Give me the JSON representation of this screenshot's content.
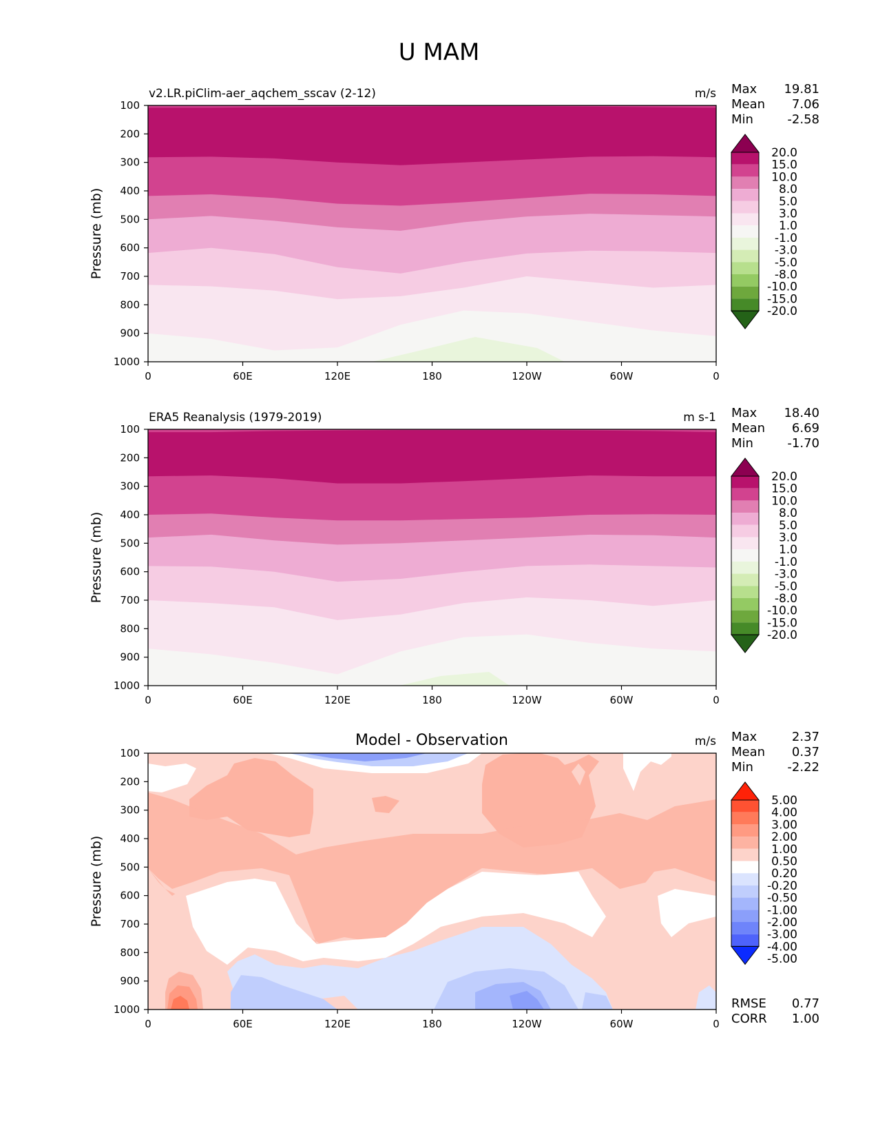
{
  "title": "U MAM",
  "x_ticks": [
    "0",
    "60E",
    "120E",
    "180",
    "120W",
    "60W",
    "0"
  ],
  "y_ticks": [
    "100",
    "200",
    "300",
    "400",
    "500",
    "600",
    "700",
    "800",
    "900",
    "1000"
  ],
  "ylabel": "Pressure (mb)",
  "colors": {
    "field_levels": [
      "#8c0051",
      "#b8126c",
      "#d2438f",
      "#e17fb2",
      "#eeacd3",
      "#f6cce3",
      "#f9e6f0",
      "#f6f6f4",
      "#e9f5dc",
      "#d4ecb5",
      "#b7df8d",
      "#94ca63",
      "#6ea83d",
      "#468a28",
      "#246218"
    ],
    "diff_levels": [
      "#ff2208",
      "#ff5232",
      "#ff7a5a",
      "#ff9a82",
      "#fdb3a2",
      "#fdd3ca",
      "#ffffff",
      "#dbe4fe",
      "#c0cefd",
      "#a4b6fc",
      "#8b9ffa",
      "#6e84fa",
      "#4e63fb",
      "#0b2bff"
    ]
  },
  "chart_data": [
    {
      "type": "contour",
      "title": "v2.LR.piClim-aer_aqchem_sscav (2-12)",
      "units": "m/s",
      "stats": {
        "Max": "19.81",
        "Mean": "7.06",
        "Min": "-2.58"
      },
      "colorbar_labels": [
        "20.0",
        "15.0",
        "10.0",
        "8.0",
        "5.0",
        "3.0",
        "1.0",
        "-1.0",
        "-3.0",
        "-5.0",
        "-8.0",
        "-10.0",
        "-15.0",
        "-20.0"
      ],
      "ylabel": "Pressure (mb)",
      "ylim": [
        1000,
        100
      ],
      "level_boundaries": [
        {
          "level": 100,
          "p": [
            108,
            108,
            106,
            105,
            104,
            103,
            103,
            104,
            106,
            108
          ]
        },
        {
          "level": 110,
          "p": [
            282,
            280,
            286,
            300,
            310,
            300,
            290,
            280,
            278,
            282
          ]
        },
        {
          "level": 101,
          "p": [
            418,
            412,
            425,
            445,
            452,
            440,
            425,
            410,
            412,
            418
          ]
        },
        {
          "level": 100,
          "p": [
            500,
            488,
            505,
            528,
            540,
            510,
            490,
            480,
            485,
            490
          ]
        },
        {
          "level": 101,
          "p": [
            618,
            600,
            622,
            668,
            690,
            650,
            620,
            610,
            612,
            618
          ]
        },
        {
          "level": 110,
          "p": [
            730,
            735,
            750,
            780,
            770,
            740,
            700,
            720,
            740,
            730
          ]
        },
        {
          "level": 100,
          "p": [
            900,
            920,
            960,
            950,
            870,
            820,
            830,
            860,
            890,
            910
          ]
        }
      ]
    },
    {
      "type": "contour",
      "title": "ERA5 Reanalysis (1979-2019)",
      "units": "m s-1",
      "stats": {
        "Max": "18.40",
        "Mean": "6.69",
        "Min": "-1.70"
      },
      "colorbar_labels": [
        "20.0",
        "15.0",
        "10.0",
        "8.0",
        "5.0",
        "3.0",
        "1.0",
        "-1.0",
        "-3.0",
        "-5.0",
        "-8.0",
        "-10.0",
        "-15.0",
        "-20.0"
      ],
      "ylabel": "Pressure (mb)",
      "ylim": [
        1000,
        100
      ],
      "level_boundaries": [
        {
          "level": 100,
          "p": [
            110,
            110,
            106,
            104,
            103,
            103,
            103,
            104,
            106,
            110
          ]
        },
        {
          "level": 110,
          "p": [
            265,
            262,
            272,
            290,
            290,
            282,
            272,
            262,
            265,
            265
          ]
        },
        {
          "level": 101,
          "p": [
            400,
            396,
            410,
            420,
            420,
            415,
            410,
            400,
            398,
            400
          ]
        },
        {
          "level": 100,
          "p": [
            480,
            470,
            490,
            505,
            500,
            490,
            480,
            470,
            472,
            480
          ]
        },
        {
          "level": 101,
          "p": [
            580,
            582,
            600,
            635,
            625,
            600,
            580,
            575,
            580,
            585
          ]
        },
        {
          "level": 110,
          "p": [
            700,
            710,
            725,
            770,
            750,
            710,
            690,
            700,
            720,
            700
          ]
        },
        {
          "level": 100,
          "p": [
            870,
            890,
            920,
            960,
            880,
            830,
            820,
            850,
            870,
            880
          ]
        }
      ]
    },
    {
      "type": "contour",
      "title": "Model - Observation",
      "units": "m/s",
      "stats": {
        "Max": "2.37",
        "Mean": "0.37",
        "Min": "-2.22"
      },
      "colorbar_labels": [
        "5.00",
        "4.00",
        "3.00",
        "2.00",
        "1.00",
        "0.50",
        "0.20",
        "-0.20",
        "-0.50",
        "-1.00",
        "-2.00",
        "-3.00",
        "-4.00",
        "-5.00"
      ],
      "metrics": {
        "RMSE": "0.77",
        "CORR": "1.00"
      },
      "ylabel": "Pressure (mb)",
      "ylim": [
        1000,
        100
      ]
    }
  ]
}
